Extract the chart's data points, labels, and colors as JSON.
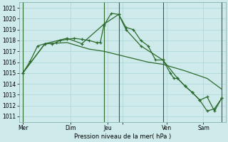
{
  "background_color": "#ceeaeb",
  "grid_color": "#b0d8d8",
  "line_color": "#2d6a2d",
  "ylim": [
    1010.5,
    1021.5
  ],
  "yticks": [
    1011,
    1012,
    1013,
    1014,
    1015,
    1016,
    1017,
    1018,
    1019,
    1020,
    1021
  ],
  "xlabel": "Pression niveau de la mer( hPa )",
  "xlim": [
    0,
    28
  ],
  "xtick_positions": [
    0.5,
    7,
    12,
    14,
    20,
    25
  ],
  "xtick_labels": [
    "Mer",
    "Dim",
    "Jeu",
    "",
    "Ven",
    "Sam"
  ],
  "vline_positions": [
    0.5,
    11.5,
    13.5,
    19.5,
    27.5
  ],
  "series1_x": [
    0.5,
    1.5,
    2.5,
    3.5,
    4.5,
    5.0,
    5.5,
    6.5,
    7.5,
    8.5,
    9.5,
    10.5,
    11.0,
    11.5,
    12.5,
    13.5,
    14.5,
    15.5,
    16.5,
    17.5,
    18.5,
    19.5,
    20.5,
    21.0,
    21.5,
    22.5,
    23.5,
    24.5,
    25.5,
    26.5,
    27.5
  ],
  "series1_y": [
    1015.0,
    1016.1,
    1017.5,
    1017.7,
    1017.7,
    1017.8,
    1018.0,
    1018.1,
    1018.2,
    1018.1,
    1018.0,
    1017.8,
    1017.8,
    1019.4,
    1020.5,
    1020.4,
    1019.2,
    1019.0,
    1018.0,
    1017.5,
    1016.2,
    1016.2,
    1015.0,
    1014.5,
    1014.5,
    1013.8,
    1013.2,
    1012.5,
    1011.5,
    1011.7,
    1012.7
  ],
  "series2_x": [
    0.5,
    3.5,
    6.5,
    9.5,
    11.5,
    14.5,
    17.5,
    19.5,
    22.5,
    25.5,
    27.5
  ],
  "series2_y": [
    1015.0,
    1017.7,
    1017.8,
    1017.2,
    1017.0,
    1016.5,
    1016.0,
    1015.8,
    1015.2,
    1014.5,
    1013.5
  ],
  "series3_x": [
    0.5,
    3.5,
    6.5,
    8.5,
    11.5,
    13.5,
    14.5,
    16.5,
    19.5,
    21.5,
    22.5,
    23.5,
    24.5,
    25.5,
    26.5,
    27.5
  ],
  "series3_y": [
    1015.0,
    1017.7,
    1018.2,
    1017.7,
    1019.5,
    1020.4,
    1019.0,
    1017.5,
    1016.2,
    1014.5,
    1013.8,
    1013.2,
    1012.5,
    1012.8,
    1011.5,
    1012.7
  ]
}
